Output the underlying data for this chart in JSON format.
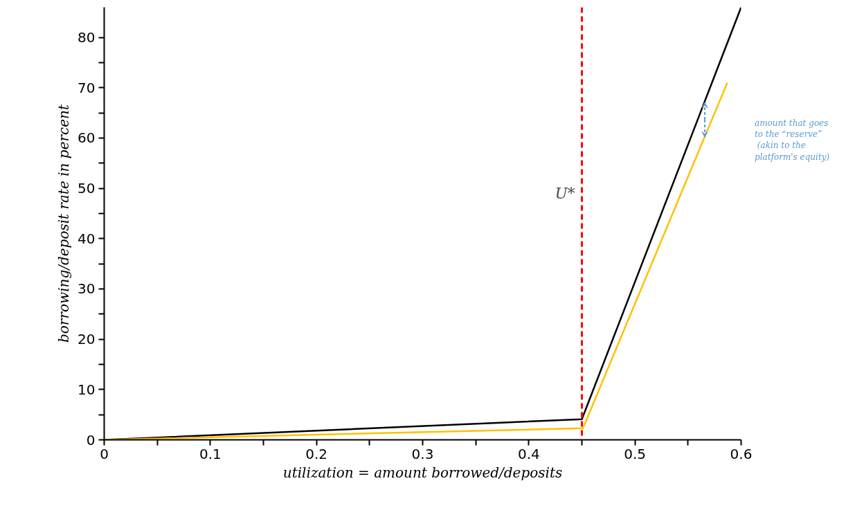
{
  "chart_data": {
    "type": "line",
    "xlabel": "utilization = amount borrowed/deposits",
    "ylabel": "borrowing/deposit rate in percent",
    "xlim": [
      0,
      0.6
    ],
    "ylim": [
      0,
      86
    ],
    "xticks": [
      0,
      0.1,
      0.2,
      0.3,
      0.4,
      0.5,
      0.6
    ],
    "yticks": [
      0,
      10,
      20,
      30,
      40,
      50,
      60,
      70,
      80
    ],
    "series": [
      {
        "color": "#000000",
        "x": [
          0,
          0.45,
          0.6
        ],
        "values": [
          0,
          4.1,
          86
        ]
      },
      {
        "color": "#ffc000",
        "x": [
          0,
          0.451,
          0.587
        ],
        "values": [
          0,
          2.3,
          71
        ]
      }
    ],
    "ref_lines": [
      {
        "axis": "x",
        "value": 0.45,
        "label": "U*",
        "color": "#ff0000",
        "line_style": "dashed"
      }
    ],
    "annotations": [
      "amount that goes\nto the “reserve”\n (akin to the\nplatform's equity)"
    ],
    "grid": false,
    "marker": "none",
    "line_style": "solid"
  }
}
